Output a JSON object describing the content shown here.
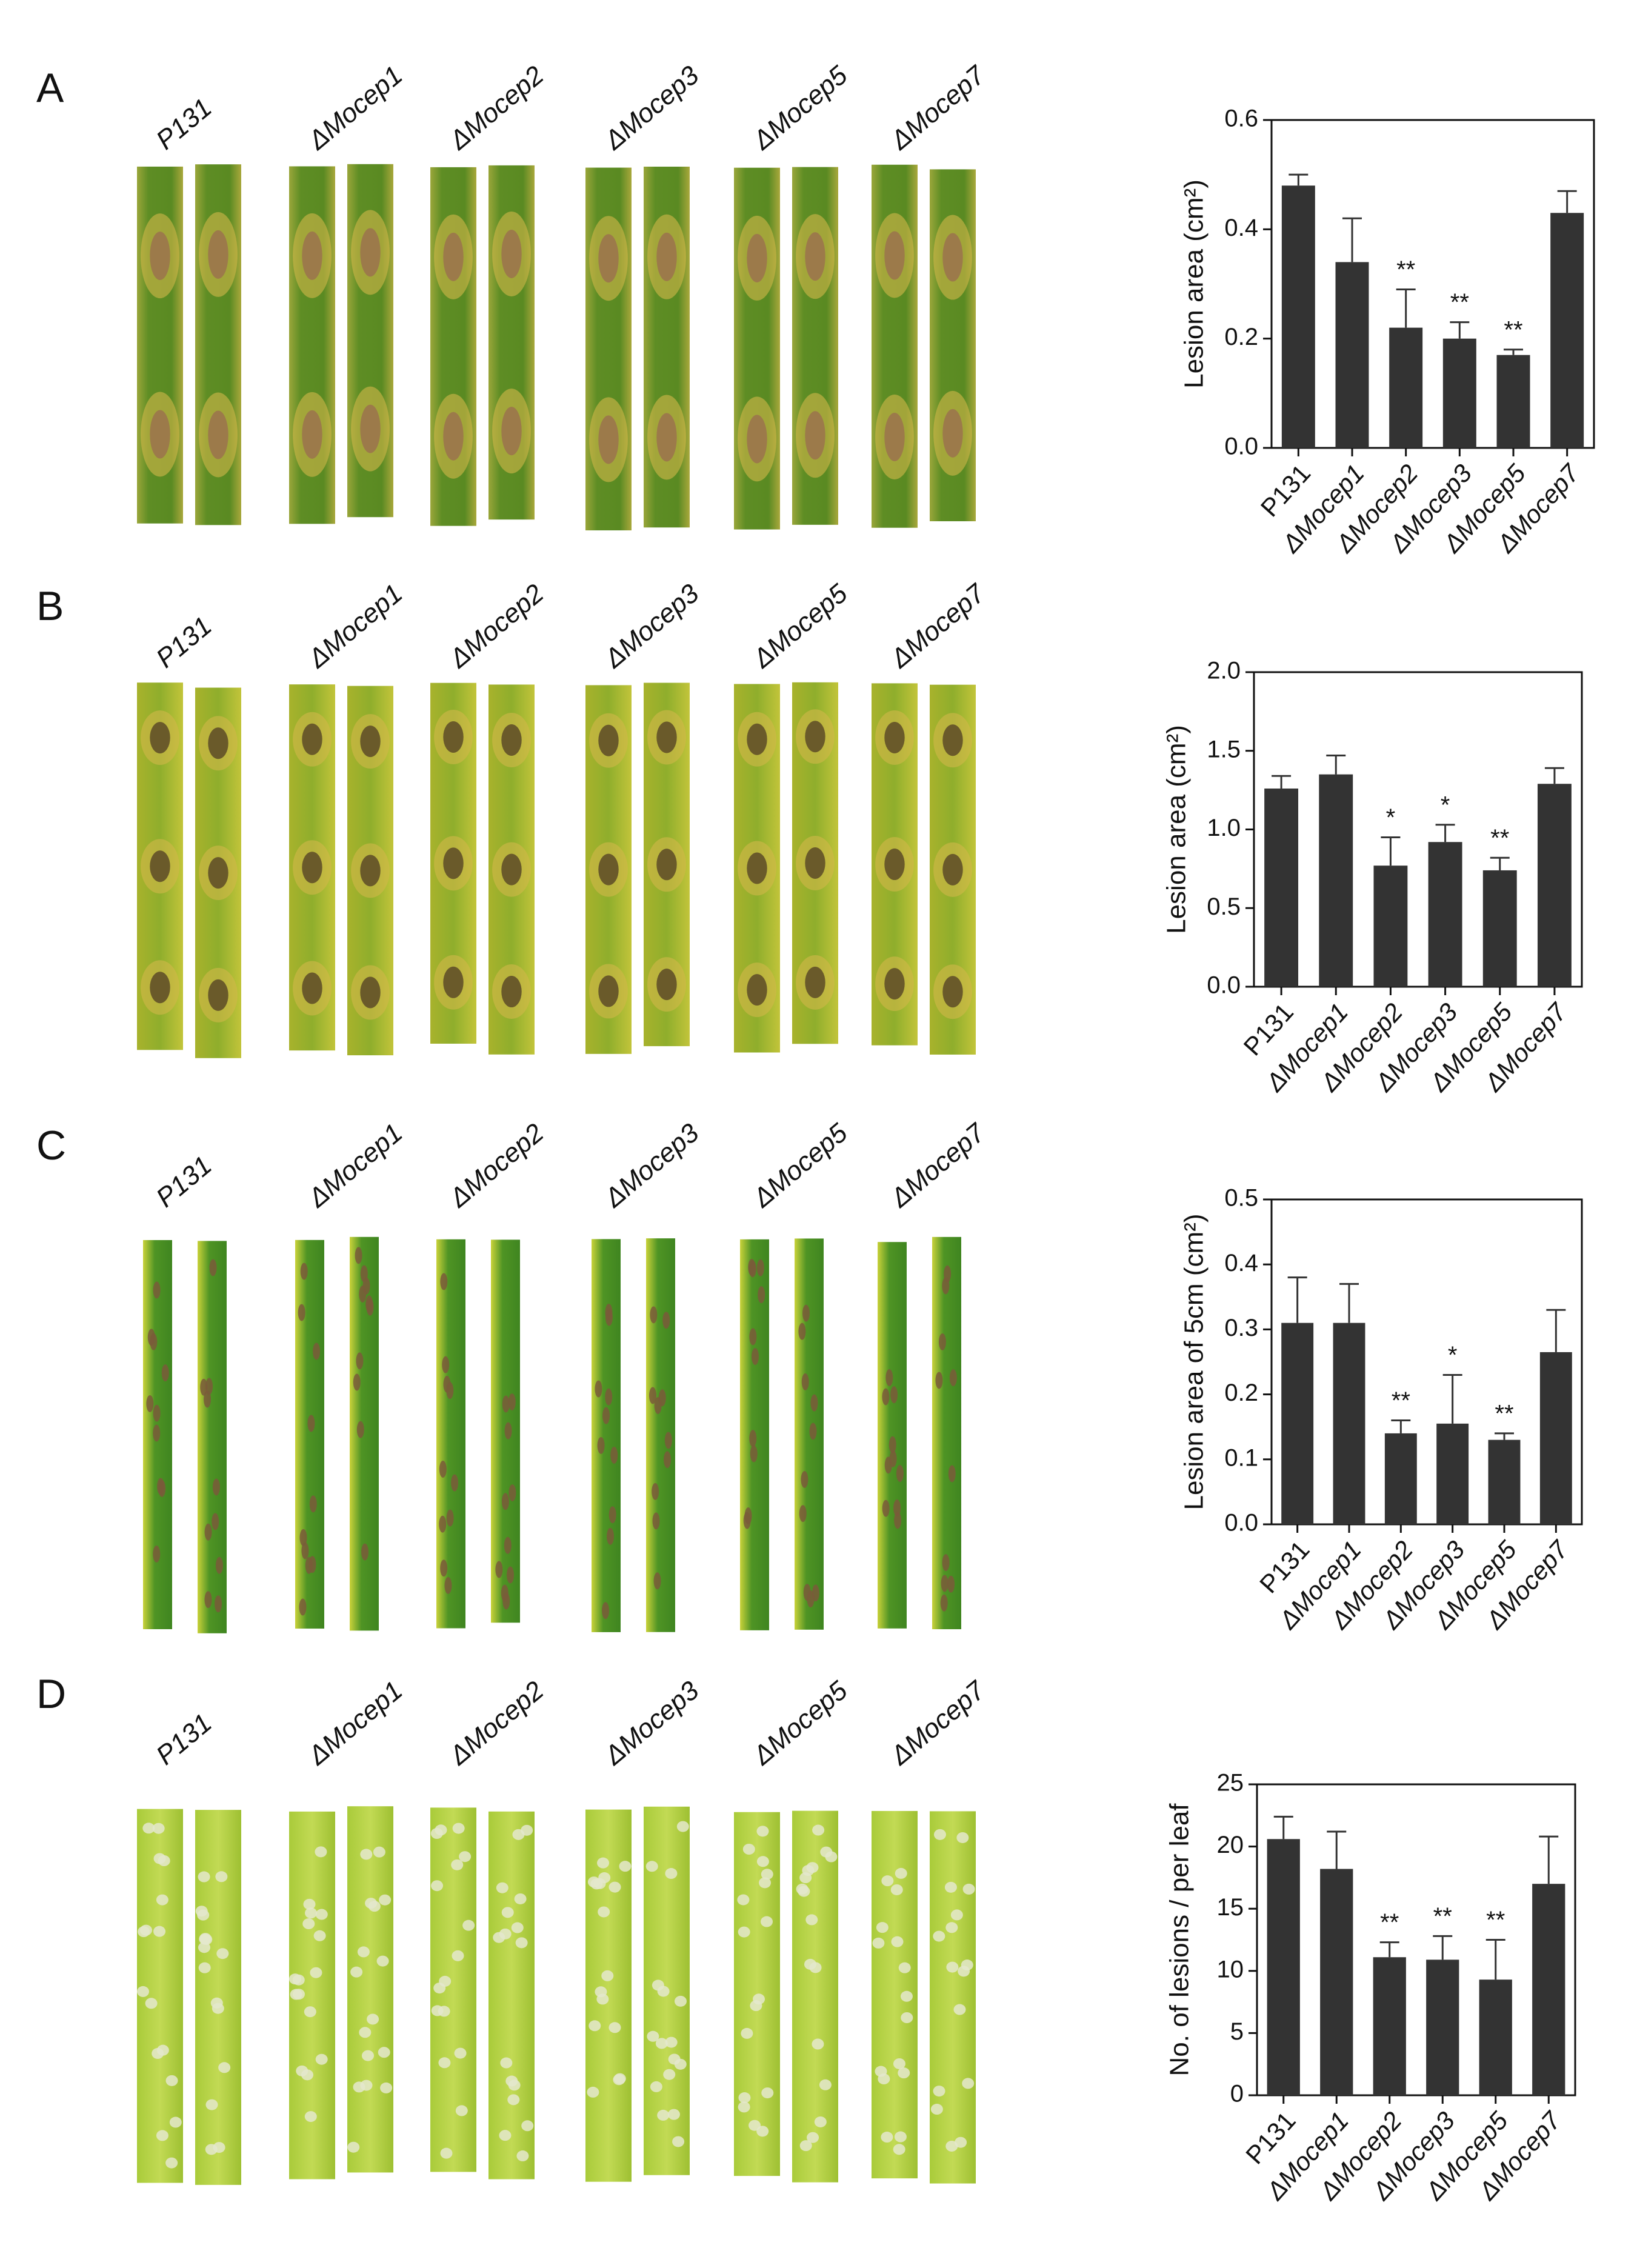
{
  "panels": [
    {
      "label": "A",
      "photo_labels": [
        "P131",
        "ΔMocep1",
        "ΔMocep2",
        "ΔMocep3",
        "ΔMocep5",
        "ΔMocep7"
      ]
    },
    {
      "label": "B",
      "photo_labels": [
        "P131",
        "ΔMocep1",
        "ΔMocep2",
        "ΔMocep3",
        "ΔMocep5",
        "ΔMocep7"
      ]
    },
    {
      "label": "C",
      "photo_labels": [
        "P131",
        "ΔMocep1",
        "ΔMocep2",
        "ΔMocep3",
        "ΔMocep5",
        "ΔMocep7"
      ]
    },
    {
      "label": "D",
      "photo_labels": [
        "P131",
        "ΔMocep1",
        "ΔMocep2",
        "ΔMocep3",
        "ΔMocep5",
        "ΔMocep7"
      ]
    }
  ],
  "chart_data": [
    {
      "type": "bar",
      "y_label": "Lesion area (cm²)",
      "color": "#333333",
      "categories": [
        "P131",
        "ΔMocep1",
        "ΔMocep2",
        "ΔMocep3",
        "ΔMocep5",
        "ΔMocep7"
      ],
      "values": [
        0.48,
        0.34,
        0.22,
        0.2,
        0.17,
        0.43
      ],
      "errors": [
        0.02,
        0.08,
        0.07,
        0.03,
        0.01,
        0.04
      ],
      "annotations": [
        null,
        null,
        "**",
        "**",
        "**",
        null
      ],
      "ylim": [
        0,
        0.6
      ],
      "yticks": [
        {
          "value": 0,
          "label": "0.0"
        },
        0.2,
        0.4,
        0.6
      ]
    },
    {
      "type": "bar",
      "y_label": "Lesion area (cm²)",
      "color": "#333333",
      "categories": [
        "P131",
        "ΔMocep1",
        "ΔMocep2",
        "ΔMocep3",
        "ΔMocep5",
        "ΔMocep7"
      ],
      "values": [
        1.26,
        1.35,
        0.77,
        0.92,
        0.74,
        1.29
      ],
      "errors": [
        0.08,
        0.12,
        0.18,
        0.11,
        0.08,
        0.1
      ],
      "annotations": [
        null,
        null,
        "*",
        "*",
        "**",
        null
      ],
      "ylim": [
        0,
        2
      ],
      "yticks": [
        {
          "value": 0,
          "label": "0.0"
        },
        0.5,
        {
          "value": 1,
          "label": "1.0"
        },
        1.5,
        {
          "value": 2,
          "label": "2.0"
        }
      ]
    },
    {
      "type": "bar",
      "y_label": "Lesion area of 5cm (cm²)",
      "color": "#333333",
      "categories": [
        "P131",
        "ΔMocep1",
        "ΔMocep2",
        "ΔMocep3",
        "ΔMocep5",
        "ΔMocep7"
      ],
      "values": [
        0.31,
        0.31,
        0.14,
        0.155,
        0.13,
        0.265
      ],
      "errors": [
        0.07,
        0.06,
        0.02,
        0.075,
        0.01,
        0.065
      ],
      "annotations": [
        null,
        null,
        "**",
        "*",
        "**",
        null
      ],
      "ylim": [
        0,
        0.5
      ],
      "yticks": [
        {
          "value": 0,
          "label": "0.0"
        },
        0.1,
        0.2,
        0.3,
        0.4,
        0.5
      ]
    },
    {
      "type": "bar",
      "y_label": "No. of lesions / per leaf",
      "color": "#333333",
      "categories": [
        "P131",
        "ΔMocep1",
        "ΔMocep2",
        "ΔMocep3",
        "ΔMocep5",
        "ΔMocep7"
      ],
      "values": [
        20.6,
        18.2,
        11.1,
        10.9,
        9.3,
        17
      ],
      "errors": [
        1.8,
        3,
        1.2,
        1.9,
        3.2,
        3.8
      ],
      "annotations": [
        null,
        null,
        "**",
        "**",
        "**",
        null
      ],
      "ylim": [
        0,
        25
      ],
      "yticks": [
        0,
        5,
        10,
        15,
        20,
        25
      ]
    }
  ]
}
